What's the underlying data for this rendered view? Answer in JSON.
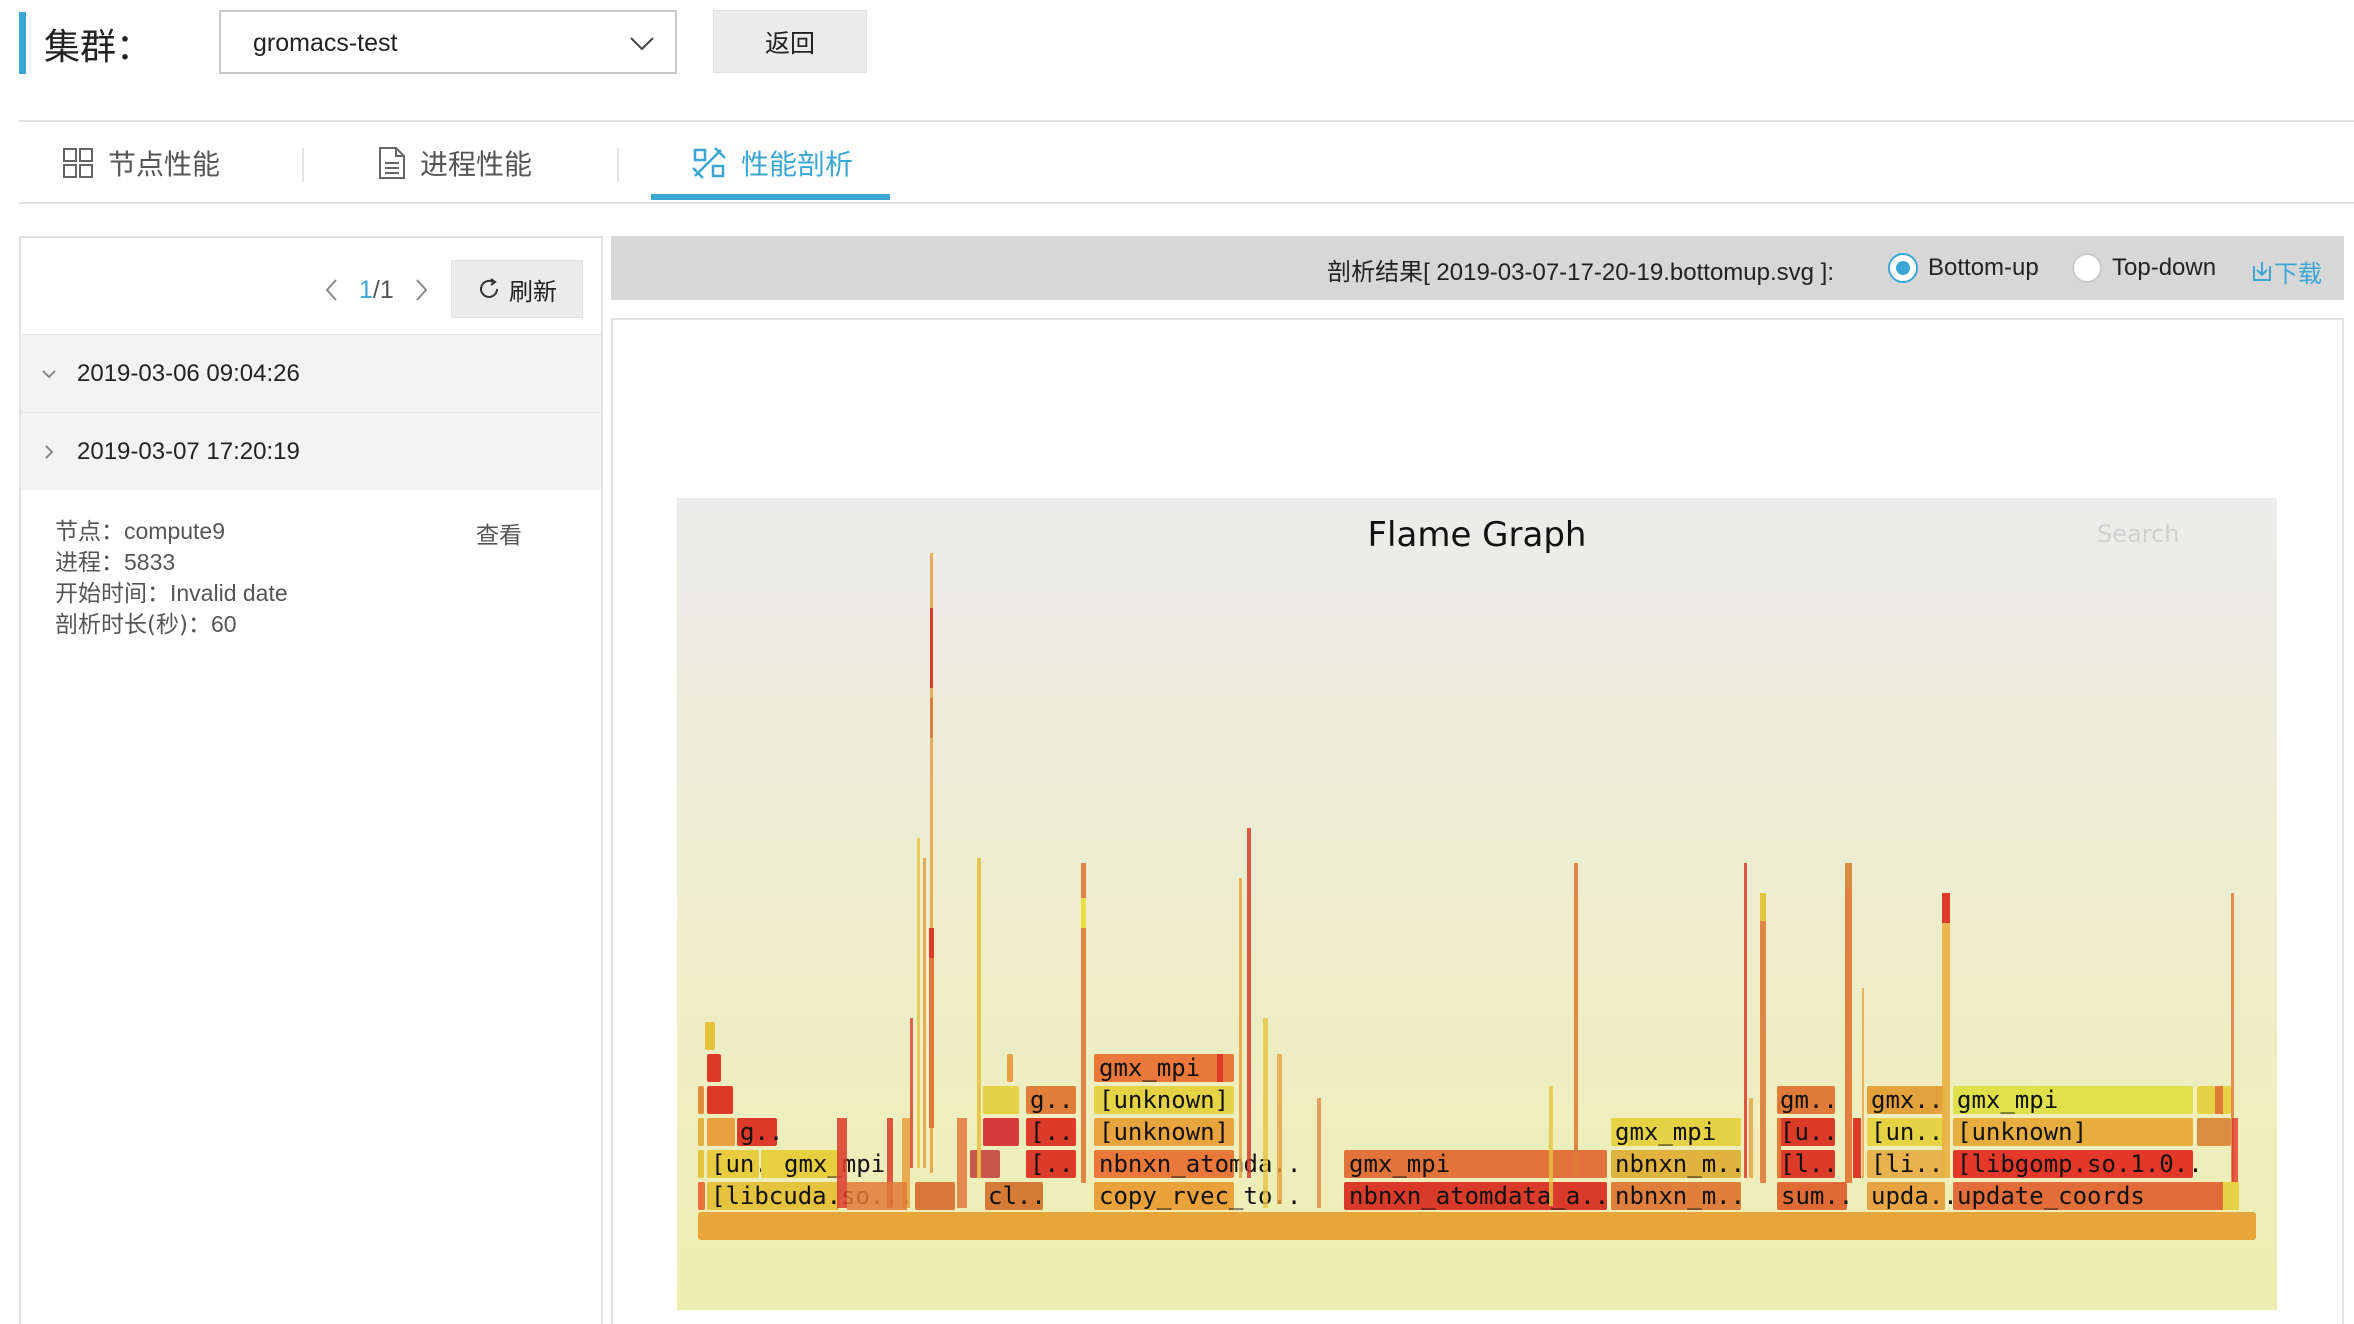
{
  "header": {
    "cluster_label": "集群：",
    "cluster_value": "gromacs-test",
    "back_label": "返回"
  },
  "tabs": [
    {
      "label": "节点性能",
      "icon": "grid-icon",
      "active": false
    },
    {
      "label": "进程性能",
      "icon": "document-icon",
      "active": false
    },
    {
      "label": "性能剖析",
      "icon": "profile-icon",
      "active": true
    }
  ],
  "colors": {
    "accent": "#3aa6d6",
    "bar_bg": "#d7d7d7"
  },
  "left": {
    "pager": {
      "current": "1",
      "total": "/1"
    },
    "refresh_label": "刷新",
    "runs": [
      {
        "time": "2019-03-06 09:04:26",
        "expanded": true
      },
      {
        "time": "2019-03-07 17:20:19",
        "expanded": false
      }
    ],
    "detail": {
      "node_label": "节点：",
      "node": "compute9",
      "pid_label": "进程：",
      "pid": "5833",
      "start_label": "开始时间：",
      "start": "Invalid date",
      "dur_label": "剖析时长(秒)：",
      "dur": "60",
      "view_label": "查看"
    }
  },
  "right": {
    "result_title": "剖析结果[ 2019-03-07-17-20-19.bottomup.svg ]:",
    "radio_bottom": "Bottom-up",
    "radio_top": "Top-down",
    "selected_mode": "Bottom-up",
    "download_label": "下载",
    "flame": {
      "title": "Flame Graph",
      "search_label": "Search",
      "labels": {
        "l1": "[libcuda.so...",
        "l2": "[un..",
        "l3": "gmx_mpi",
        "l4": "g..",
        "l5": "cl..",
        "l6": "[..",
        "l7": "[..",
        "l8": "g..",
        "l9": "copy_rvec_to..",
        "l10": "nbnxn_atomda..",
        "l11": "[unknown]",
        "l12": "[unknown]",
        "l13": "gmx_mpi",
        "l14": "nbnxn_atomdata_a..",
        "l15": "gmx_mpi",
        "l16": "nbnxn_m..",
        "l17": "nbnxn_m..",
        "l18": "gmx_mpi",
        "l19": "sum..",
        "l20": "[l..",
        "l21": "[u..",
        "l22": "gm..",
        "l23": "upda..",
        "l24": "[li..",
        "l25": "[un..",
        "l26": "gmx..",
        "l27": "update_coords",
        "l28": "[libgomp.so.1.0..",
        "l29": "[unknown]",
        "l30": "gmx_mpi"
      }
    }
  }
}
